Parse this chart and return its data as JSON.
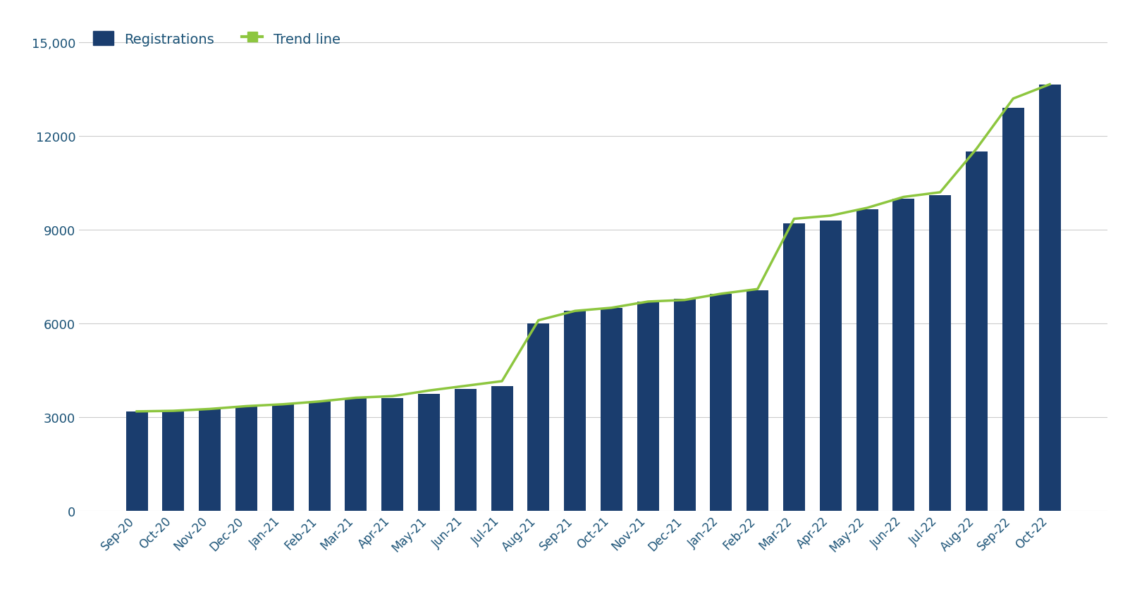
{
  "categories": [
    "Sep-20",
    "Oct-20",
    "Nov-20",
    "Dec-20",
    "Jan-21",
    "Feb-21",
    "Mar-21",
    "Apr-21",
    "May-21",
    "Jun-21",
    "Jul-21",
    "Aug-21",
    "Sep-21",
    "Oct-21",
    "Nov-21",
    "Dec-21",
    "Jan-22",
    "Feb-22",
    "Mar-22",
    "Apr-22",
    "May-22",
    "Jun-22",
    "Jul-22",
    "Aug-22",
    "Sep-22",
    "Oct-22"
  ],
  "registrations": [
    3182,
    3182,
    3250,
    3350,
    3400,
    3500,
    3600,
    3600,
    3750,
    3900,
    4000,
    6000,
    6400,
    6500,
    6700,
    6800,
    6950,
    7050,
    9200,
    9300,
    9650,
    10000,
    10100,
    11500,
    12900,
    13656
  ],
  "trend_line": [
    3182,
    3200,
    3260,
    3350,
    3410,
    3500,
    3620,
    3670,
    3850,
    4000,
    4150,
    6100,
    6400,
    6500,
    6700,
    6750,
    6950,
    7100,
    9350,
    9450,
    9700,
    10050,
    10200,
    11600,
    13200,
    13656
  ],
  "bar_color": "#1a3d6e",
  "trend_color": "#8dc63f",
  "background_color": "#ffffff",
  "grid_color": "#cccccc",
  "tick_color": "#1a5276",
  "yticks": [
    0,
    3000,
    6000,
    9000,
    12000,
    15000
  ],
  "ylim": [
    0,
    15800
  ],
  "legend_labels": [
    "Registrations",
    "Trend line"
  ],
  "legend_bar_color": "#1a3d6e",
  "legend_trend_color": "#8dc63f"
}
